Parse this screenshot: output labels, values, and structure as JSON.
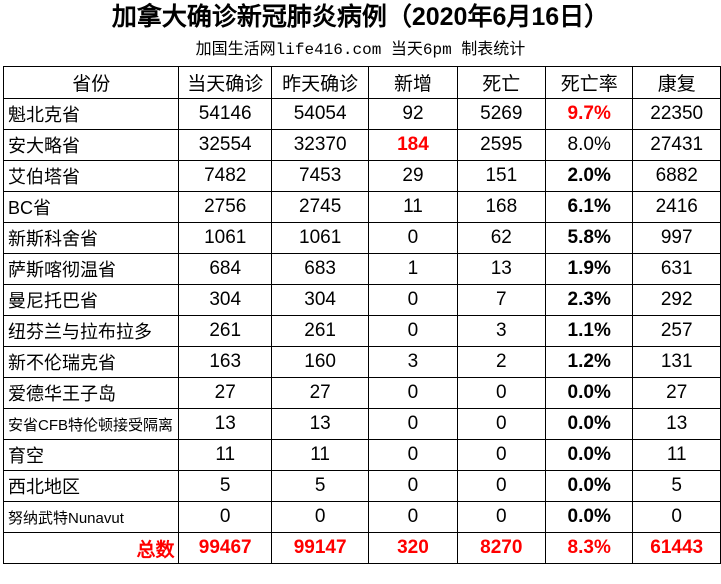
{
  "title": "加拿大确诊新冠肺炎病例（2020年6月16日）",
  "subtitle": "加国生活网life416.com 当天6pm 制表统计",
  "colors": {
    "highlight": "#ff0000"
  },
  "headers": [
    "省份",
    "当天确诊",
    "昨天确诊",
    "新增",
    "死亡",
    "死亡率",
    "康复"
  ],
  "rows": [
    [
      "魁北克省",
      "54146",
      "54054",
      "92",
      "5269",
      "9.7%",
      "22350"
    ],
    [
      "安大略省",
      "32554",
      "32370",
      "184",
      "2595",
      "8.0%",
      "27431"
    ],
    [
      "艾伯塔省",
      "7482",
      "7453",
      "29",
      "151",
      "2.0%",
      "6882"
    ],
    [
      "BC省",
      "2756",
      "2745",
      "11",
      "168",
      "6.1%",
      "2416"
    ],
    [
      "新斯科舍省",
      "1061",
      "1061",
      "0",
      "62",
      "5.8%",
      "997"
    ],
    [
      "萨斯喀彻温省",
      "684",
      "683",
      "1",
      "13",
      "1.9%",
      "631"
    ],
    [
      "曼尼托巴省",
      "304",
      "304",
      "0",
      "7",
      "2.3%",
      "292"
    ],
    [
      "纽芬兰与拉布拉多",
      "261",
      "261",
      "0",
      "3",
      "1.1%",
      "257"
    ],
    [
      "新不伦瑞克省",
      "163",
      "160",
      "3",
      "2",
      "1.2%",
      "131"
    ],
    [
      "爱德华王子岛",
      "27",
      "27",
      "0",
      "0",
      "0.0%",
      "27"
    ],
    [
      "安省CFB特伦顿接受隔离",
      "13",
      "13",
      "0",
      "0",
      "0.0%",
      "13"
    ],
    [
      "育空",
      "11",
      "11",
      "0",
      "0",
      "0.0%",
      "11"
    ],
    [
      "西北地区",
      "5",
      "5",
      "0",
      "0",
      "0.0%",
      "5"
    ],
    [
      "努纳武特Nunavut",
      "0",
      "0",
      "0",
      "0",
      "0.0%",
      "0"
    ]
  ],
  "total": [
    "总数",
    "99467",
    "99147",
    "320",
    "8270",
    "8.3%",
    "61443"
  ]
}
